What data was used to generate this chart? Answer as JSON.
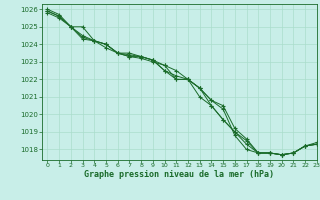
{
  "title": "Graphe pression niveau de la mer (hPa)",
  "background_color": "#c8eee8",
  "grid_color": "#aaddcc",
  "line_color": "#1a6b2a",
  "xlim": [
    -0.5,
    23
  ],
  "ylim": [
    1017.4,
    1026.3
  ],
  "xticks": [
    0,
    1,
    2,
    3,
    4,
    5,
    6,
    7,
    8,
    9,
    10,
    11,
    12,
    13,
    14,
    15,
    16,
    17,
    18,
    19,
    20,
    21,
    22,
    23
  ],
  "yticks": [
    1018,
    1019,
    1020,
    1021,
    1022,
    1023,
    1024,
    1025,
    1026
  ],
  "series": [
    [
      1025.9,
      1025.6,
      1025.0,
      1025.0,
      1024.2,
      1024.0,
      1023.5,
      1023.3,
      1023.2,
      1023.0,
      1022.8,
      1022.5,
      1022.0,
      1021.5,
      1020.8,
      1020.3,
      1018.8,
      1018.0,
      1017.8,
      1017.8,
      1017.7,
      1017.8,
      1018.2,
      1018.4
    ],
    [
      1026.0,
      1025.7,
      1025.0,
      1024.5,
      1024.2,
      1024.0,
      1023.5,
      1023.5,
      1023.3,
      1023.1,
      1022.5,
      1022.0,
      1022.0,
      1021.0,
      1020.5,
      1019.7,
      1019.0,
      1018.5,
      1017.8,
      1017.8,
      1017.7,
      1017.8,
      1018.2,
      1018.3
    ],
    [
      1025.8,
      1025.5,
      1025.0,
      1024.3,
      1024.2,
      1023.8,
      1023.5,
      1023.3,
      1023.3,
      1023.1,
      1022.5,
      1022.2,
      1022.0,
      1021.5,
      1020.5,
      1019.7,
      1019.0,
      1018.3,
      1017.8,
      1017.8,
      1017.7,
      1017.8,
      1018.2,
      1018.3
    ],
    [
      1025.9,
      1025.6,
      1025.0,
      1024.4,
      1024.2,
      1024.0,
      1023.5,
      1023.4,
      1023.3,
      1023.1,
      1022.8,
      1022.0,
      1022.0,
      1021.5,
      1020.8,
      1020.5,
      1019.2,
      1018.6,
      1017.8,
      1017.8,
      1017.7,
      1017.8,
      1018.2,
      1018.3
    ]
  ]
}
